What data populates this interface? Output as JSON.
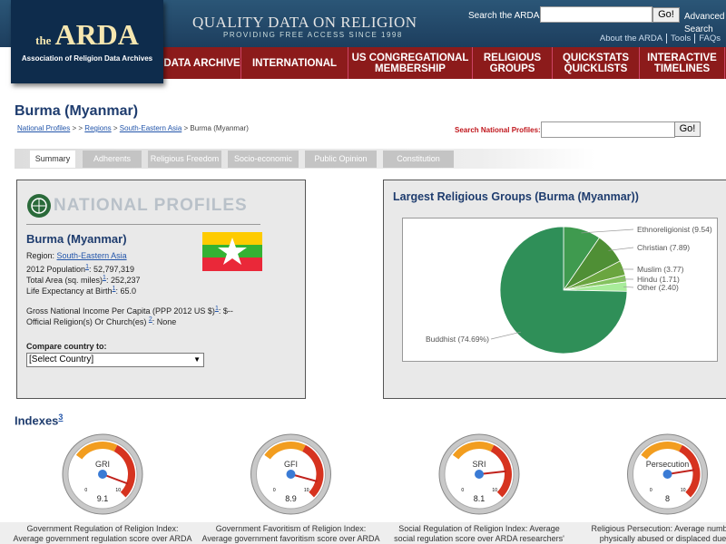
{
  "header": {
    "logo_small": "the",
    "logo": "ARDA",
    "logo_subtitle": "Association of Religion Data Archives",
    "tagline": "QUALITY DATA ON RELIGION",
    "tagline_sub": "PROVIDING FREE ACCESS SINCE 1998",
    "search_label": "Search the ARDA",
    "search_button": "Go!",
    "advanced_search": "Advanced Search",
    "links": [
      "About the ARDA",
      "Tools",
      "FAQs"
    ]
  },
  "nav": [
    "DATA ARCHIVE",
    "INTERNATIONAL",
    "US CONGREGATIONAL MEMBERSHIP",
    "RELIGIOUS GROUPS",
    "QUICKSTATS QUICKLISTS",
    "INTERACTIVE TIMELINES"
  ],
  "page_title": "Burma (Myanmar)",
  "breadcrumb": [
    "National Profiles",
    "> >",
    "Regions",
    ">",
    "South-Eastern Asia",
    "> Burma (Myanmar)"
  ],
  "profile_search": {
    "label": "Search National Profiles:",
    "button": "Go!"
  },
  "tabs": [
    "Summary",
    "Adherents",
    "Religious Freedom",
    "Socio-economic",
    "Public Opinion",
    "Constitution"
  ],
  "profile": {
    "banner": "NATIONAL PROFILES",
    "country": "Burma (Myanmar)",
    "fields": [
      {
        "label": "Region:",
        "value": "South-Eastern Asia"
      },
      {
        "label": "2012 Population",
        "note": "1",
        "value": ": 52,797,319"
      },
      {
        "label": "Total Area (sq. miles)",
        "note": "1",
        "value": ": 252,237"
      },
      {
        "label": "Life Expectancy at Birth",
        "note": "1",
        "value": ": 65.0"
      },
      {
        "label": "Gross National Income Per Capita (PPP 2012 US $)",
        "note": "1",
        "value": ": $--"
      },
      {
        "label": "Official Religion(s) Or Church(es) ",
        "note": "2",
        "value": ": None"
      }
    ],
    "compare_label": "Compare country to:",
    "select": "[Select Country]"
  },
  "chart_data": {
    "type": "pie",
    "title": "Largest Religious Groups (Burma (Myanmar))",
    "values": [
      9.54,
      7.89,
      3.77,
      1.71,
      2.4,
      74.69
    ],
    "value_labels": [
      "Ethnoreligionist (9.54)",
      "Christian (7.89)",
      "Muslim (3.77)",
      "Hindu (1.71)",
      "Other (2.40)",
      "Buddhist (74.69%)"
    ],
    "colors": [
      "#3f9a4f",
      "#4f8f35",
      "#6aa53f",
      "#84c25f",
      "#a8ec9a",
      "#2f8f58"
    ]
  },
  "indexes": {
    "title": "Indexes",
    "note": "3",
    "scale": {
      "min": 0,
      "max": 10
    },
    "gauges": [
      {
        "label": "GRI",
        "value": 9.1,
        "description": [
          "Government Regulation of Religion Index:",
          "Average government regulation score over ARDA"
        ]
      },
      {
        "label": "GFI",
        "value": 8.9,
        "description": [
          "Government Favoritism of Religion Index:",
          "Average government favoritism score over ARDA"
        ]
      },
      {
        "label": "SRI",
        "value": 8.1,
        "description": [
          "Social Regulation of Religion Index: Average",
          "social regulation score over ARDA researchers'"
        ]
      },
      {
        "label": "Persecution",
        "value": 8,
        "description": [
          "Religious Persecution: Average number of",
          "physically abused or displaced due to"
        ]
      }
    ]
  }
}
